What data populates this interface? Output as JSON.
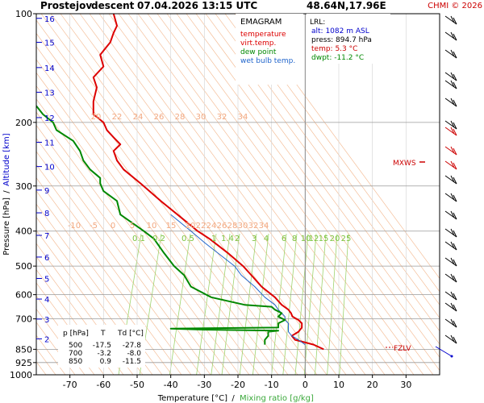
{
  "header": {
    "station": "Prostejov",
    "mode": "descent",
    "datetime": "07.04.2026 13:15 UTC",
    "coords": "48.64N,17.96E",
    "copyright": "CHMI © 2026"
  },
  "legend": {
    "title": "EMAGRAM",
    "items": [
      {
        "label": "temperature",
        "color": "#dd0000"
      },
      {
        "label": "virt.temp.",
        "color": "#dd0000"
      },
      {
        "label": "dew point",
        "color": "#008800"
      },
      {
        "label": "wet bulb temp.",
        "color": "#2266cc"
      }
    ]
  },
  "lrl": {
    "title": "LRL:",
    "alt": "alt: 1082 m ASL",
    "press": "press: 894.7 hPa",
    "temp": "temp: 5.3 °C",
    "dwpt": "dwpt: -11.2 °C"
  },
  "table": {
    "headers": [
      "p [hPa]",
      "T",
      "Td [°C]"
    ],
    "rows": [
      [
        "500",
        "-17.5",
        "-27.8"
      ],
      [
        "700",
        "-3.2",
        "-8.0"
      ],
      [
        "850",
        "0.9",
        "-11.5"
      ]
    ]
  },
  "markers": {
    "mxws": "MXWS",
    "fzlv": "FZLV"
  },
  "chart_data": {
    "type": "line",
    "xlabel": "Temperature [°C]",
    "xlabel_sep": "/",
    "xlabel2": "Mixing ratio [g/kg]",
    "ylabel": "Pressure [hPa]",
    "ylabel_sep": "/",
    "ylabel2": "Altitude [km]",
    "yscale": "log",
    "xlim": [
      -80,
      40
    ],
    "ylim": [
      1000,
      100
    ],
    "x_ticks": [
      -70,
      -60,
      -50,
      -40,
      -30,
      -20,
      -10,
      0,
      10,
      20,
      30
    ],
    "y_ticks": [
      100,
      200,
      300,
      400,
      500,
      600,
      700,
      850,
      925,
      1000
    ],
    "altitude_ticks": [
      2,
      3,
      4,
      5,
      6,
      7,
      8,
      9,
      10,
      11,
      12,
      13,
      14,
      15,
      16
    ],
    "adiabat_labels_upper": [
      "20",
      "22",
      "24",
      "26",
      "28",
      "30",
      "32",
      "34"
    ],
    "adiabat_labels_lower": [
      "-10",
      "-5",
      "0",
      "5",
      "10",
      "15",
      "20",
      "22",
      "24",
      "26",
      "28",
      "30",
      "32",
      "34"
    ],
    "mixing_ratio_labels": [
      "0.1",
      "0.2",
      "0.5",
      "1",
      "1.4",
      "2",
      "3",
      "4",
      "6",
      "8",
      "10",
      "12",
      "15",
      "20",
      "25"
    ],
    "series": [
      {
        "name": "temperature",
        "color": "#dd0000",
        "points": [
          [
            5.5,
            850
          ],
          [
            2.5,
            825
          ],
          [
            -3,
            800
          ],
          [
            -4,
            780
          ],
          [
            -2,
            760
          ],
          [
            -1,
            740
          ],
          [
            -1,
            720
          ],
          [
            -2,
            705
          ],
          [
            -3.8,
            690
          ],
          [
            -4.2,
            675
          ],
          [
            -5,
            660
          ],
          [
            -7,
            640
          ],
          [
            -9,
            610
          ],
          [
            -13,
            570
          ],
          [
            -16,
            530
          ],
          [
            -18.5,
            500
          ],
          [
            -23,
            460
          ],
          [
            -28.5,
            420
          ],
          [
            -32,
            400
          ],
          [
            -38,
            360
          ],
          [
            -43,
            330
          ],
          [
            -49,
            295
          ],
          [
            -54,
            270
          ],
          [
            -56,
            255
          ],
          [
            -57,
            240
          ],
          [
            -55,
            230
          ],
          [
            -57,
            220
          ],
          [
            -59,
            210
          ],
          [
            -60,
            200
          ],
          [
            -63,
            190
          ],
          [
            -63,
            175
          ],
          [
            -62,
            160
          ],
          [
            -63,
            150
          ],
          [
            -60,
            140
          ],
          [
            -61,
            130
          ],
          [
            -58,
            120
          ],
          [
            -57,
            113
          ],
          [
            -56,
            108
          ],
          [
            -57,
            100
          ]
        ]
      },
      {
        "name": "wet bulb temp.",
        "color": "#2266cc",
        "points": [
          [
            0,
            825
          ],
          [
            -2,
            800
          ],
          [
            -4,
            780
          ],
          [
            -5,
            760
          ],
          [
            -5,
            740
          ],
          [
            -5,
            720
          ],
          [
            -6,
            705
          ],
          [
            -6,
            690
          ],
          [
            -7,
            675
          ],
          [
            -8,
            660
          ],
          [
            -9,
            640
          ],
          [
            -12,
            610
          ],
          [
            -15,
            570
          ],
          [
            -19,
            530
          ],
          [
            -21,
            500
          ],
          [
            -26,
            460
          ],
          [
            -30,
            430
          ],
          [
            -34,
            400
          ],
          [
            -40,
            360
          ]
        ]
      },
      {
        "name": "dew point",
        "color": "#008800",
        "points": [
          [
            -12,
            825
          ],
          [
            -12,
            800
          ],
          [
            -11,
            780
          ],
          [
            -11,
            760
          ],
          [
            -8,
            755
          ],
          [
            -30,
            750
          ],
          [
            -40,
            745
          ],
          [
            -8,
            740
          ],
          [
            -8,
            720
          ],
          [
            -6,
            705
          ],
          [
            -8,
            690
          ],
          [
            -7,
            675
          ],
          [
            -9,
            660
          ],
          [
            -10,
            648
          ],
          [
            -18,
            640
          ],
          [
            -28,
            610
          ],
          [
            -34,
            570
          ],
          [
            -36,
            530
          ],
          [
            -39,
            500
          ],
          [
            -42,
            460
          ],
          [
            -45,
            420
          ],
          [
            -48,
            400
          ],
          [
            -55,
            360
          ],
          [
            -56,
            330
          ],
          [
            -60,
            310
          ],
          [
            -61,
            295
          ],
          [
            -61,
            285
          ],
          [
            -64,
            270
          ],
          [
            -66,
            255
          ],
          [
            -67,
            240
          ],
          [
            -69,
            225
          ],
          [
            -74,
            210
          ],
          [
            -75,
            200
          ],
          [
            -78,
            190
          ],
          [
            -80,
            180
          ]
        ]
      }
    ]
  }
}
